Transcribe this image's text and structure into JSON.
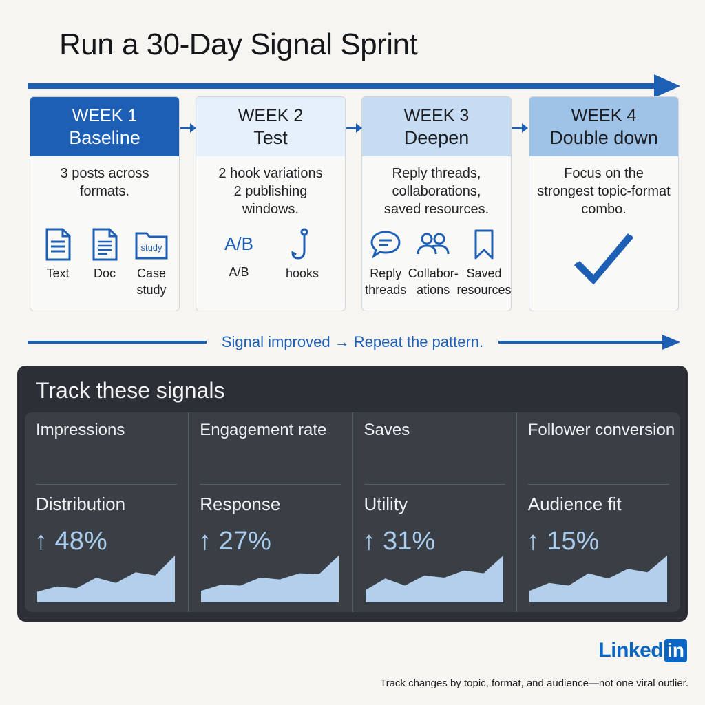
{
  "title": "Run a 30-Day Signal Sprint",
  "accent_color": "#1d5fb5",
  "weeks": [
    {
      "number": "WEEK 1",
      "name": "Baseline",
      "description": "3 posts across formats.",
      "icons": [
        {
          "icon": "text-document-icon",
          "label": "Text"
        },
        {
          "icon": "doc-icon",
          "label": "Doc"
        },
        {
          "icon": "case-study-folder-icon",
          "glyph": "study",
          "label": "Case study"
        }
      ]
    },
    {
      "number": "WEEK 2",
      "name": "Test",
      "description": "2 hook variations 2 publishing windows.",
      "icons": [
        {
          "icon": "ab-test-icon",
          "glyph": "A/B",
          "label": "A/B"
        },
        {
          "icon": "fishing-hook-icon",
          "label": "hooks"
        }
      ]
    },
    {
      "number": "WEEK 3",
      "name": "Deepen",
      "description": "Reply threads, collaborations, saved resources.",
      "icons": [
        {
          "icon": "chat-bubble-icon",
          "label": "Reply threads"
        },
        {
          "icon": "people-icon",
          "label": "Collabor- ations"
        },
        {
          "icon": "bookmark-icon",
          "label": "Saved resources"
        }
      ]
    },
    {
      "number": "WEEK 4",
      "name": "Double down",
      "description": "Focus on the strongest topic-format combo.",
      "icons": [
        {
          "icon": "checkmark-icon",
          "label": ""
        }
      ]
    }
  ],
  "signal_loop": "Signal improved → Repeat the pattern.",
  "signals_panel": {
    "title": "Track these signals",
    "metrics": [
      {
        "name": "Impressions",
        "sub": "Distribution",
        "value": "↑ 48%",
        "trend": [
          0.18,
          0.3,
          0.26,
          0.5,
          0.38,
          0.62,
          0.55,
          1.0
        ]
      },
      {
        "name": "Engagement rate",
        "sub": "Response",
        "value": "↑ 27%",
        "trend": [
          0.2,
          0.34,
          0.32,
          0.5,
          0.46,
          0.6,
          0.58,
          1.0
        ]
      },
      {
        "name": "Saves",
        "sub": "Utility",
        "value": "↑ 31%",
        "trend": [
          0.22,
          0.48,
          0.32,
          0.55,
          0.5,
          0.66,
          0.6,
          1.0
        ]
      },
      {
        "name": "Follower conversion",
        "sub": "Audience fit",
        "value": "↑ 15%",
        "trend": [
          0.2,
          0.38,
          0.32,
          0.6,
          0.48,
          0.7,
          0.62,
          1.0
        ]
      }
    ]
  },
  "brand": {
    "text": "Linked",
    "box": "in",
    "color": "#0a66c2"
  },
  "footer": "Track changes by topic, format, and audience—not one viral outlier."
}
